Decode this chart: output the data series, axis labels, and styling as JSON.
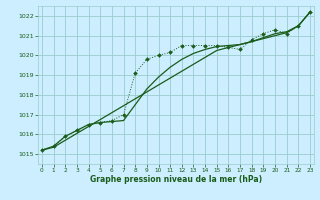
{
  "xlabel": "Graphe pression niveau de la mer (hPa)",
  "x_ticks": [
    0,
    1,
    2,
    3,
    4,
    5,
    6,
    7,
    8,
    9,
    10,
    11,
    12,
    13,
    14,
    15,
    16,
    17,
    18,
    19,
    20,
    21,
    22,
    23
  ],
  "ylim": [
    1014.5,
    1022.5
  ],
  "xlim": [
    -0.3,
    23.3
  ],
  "yticks": [
    1015,
    1016,
    1017,
    1018,
    1019,
    1020,
    1021,
    1022
  ],
  "bg_color": "#cceeff",
  "grid_color": "#99cccc",
  "line_color": "#1a5c1a",
  "y_markers": [
    1015.2,
    1015.4,
    1015.9,
    1016.2,
    1016.5,
    1016.6,
    1016.7,
    1017.0,
    1019.1,
    1019.8,
    1020.0,
    1020.15,
    1020.5,
    1020.5,
    1020.5,
    1020.5,
    1020.4,
    1020.3,
    1020.8,
    1021.1,
    1021.3,
    1021.1,
    1021.5,
    1022.2
  ],
  "y_solid1": [
    1015.2,
    1015.4,
    1015.9,
    1016.2,
    1016.5,
    1016.6,
    1016.65,
    1016.7,
    1017.5,
    1018.3,
    1018.9,
    1019.4,
    1019.8,
    1020.1,
    1020.3,
    1020.45,
    1020.5,
    1020.55,
    1020.7,
    1020.9,
    1021.1,
    1021.2,
    1021.5,
    1022.2
  ],
  "y_solid2": [
    1015.2,
    1015.35,
    1015.7,
    1016.05,
    1016.4,
    1016.75,
    1017.1,
    1017.45,
    1017.8,
    1018.15,
    1018.5,
    1018.85,
    1019.2,
    1019.55,
    1019.9,
    1020.25,
    1020.4,
    1020.55,
    1020.7,
    1020.85,
    1021.0,
    1021.15,
    1021.5,
    1022.2
  ]
}
